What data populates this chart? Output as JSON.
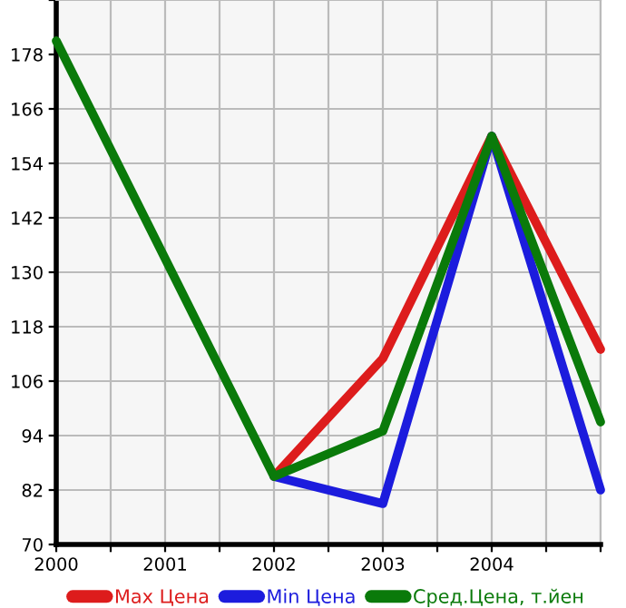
{
  "chart_data": {
    "type": "line",
    "x": [
      2000,
      2002,
      2003,
      2004,
      2005
    ],
    "series": [
      {
        "name": "Max Цена",
        "color": "#dd1c1c",
        "values": [
          null,
          85,
          111,
          160,
          113
        ]
      },
      {
        "name": "Min Цена",
        "color": "#1c1cdd",
        "values": [
          null,
          85,
          79,
          160,
          82
        ]
      },
      {
        "name": "Сред.Цена, т.йен",
        "color": "#0a7a0a",
        "values": [
          181,
          85,
          95,
          160,
          97
        ]
      }
    ],
    "xlim": [
      2000,
      2005
    ],
    "xticks": [
      2000,
      {
        "value": 2000.5,
        "label": null
      },
      2001,
      {
        "value": 2001.5,
        "label": null
      },
      2002,
      {
        "value": 2002.5,
        "label": null
      },
      2003,
      {
        "value": 2003.5,
        "label": null
      },
      2004,
      {
        "value": 2004.5,
        "label": null
      },
      {
        "value": 2005,
        "label": null
      }
    ],
    "ylim": [
      70,
      190
    ],
    "yticks": [
      70,
      82,
      94,
      106,
      118,
      130,
      142,
      154,
      166,
      178,
      {
        "value": 190,
        "label": null
      }
    ],
    "grid": true,
    "legend": "bottom",
    "marker": "none",
    "line_style": "solid"
  }
}
